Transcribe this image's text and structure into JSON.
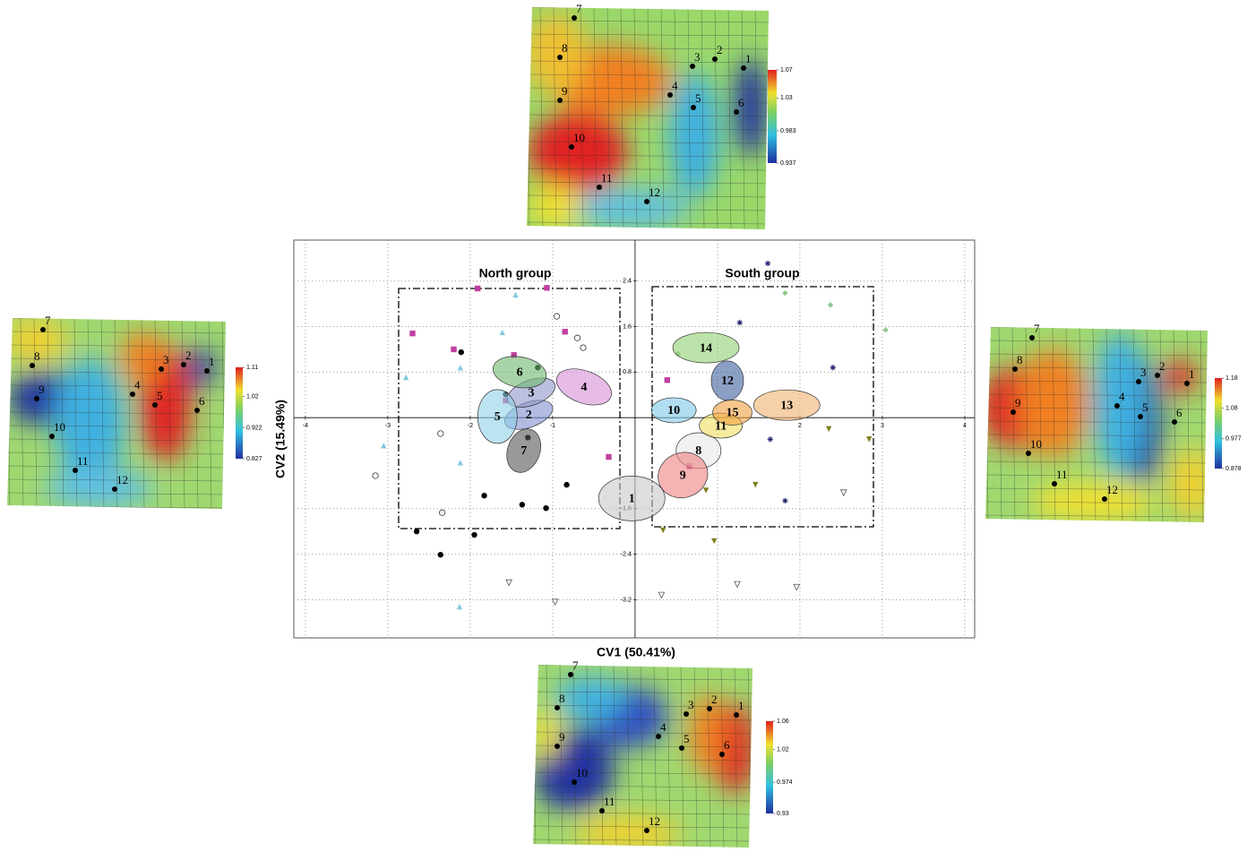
{
  "chart_data": [
    {
      "type": "scatter",
      "xlabel": "CV1 (50.41%)",
      "ylabel": "CV2 (15.49%)",
      "xlim": [
        -4.14,
        4.12
      ],
      "ylim": [
        -3.87,
        3.12
      ],
      "xticks": [
        -4,
        -3,
        -2,
        -1,
        1,
        2,
        3,
        4
      ],
      "yticks": [
        -3.2,
        -2.4,
        -1.6,
        0.8,
        1.6,
        2.4
      ],
      "grid": true,
      "annotations": [
        "North group",
        "South group"
      ],
      "groups": {
        "labels": [
          "1",
          "2",
          "3",
          "4",
          "5",
          "6",
          "7",
          "8",
          "9",
          "10",
          "11",
          "12",
          "13",
          "14",
          "15"
        ],
        "x": [
          -0.04,
          -1.29,
          -1.26,
          -0.62,
          -1.67,
          -1.4,
          -1.35,
          0.77,
          0.58,
          0.47,
          1.04,
          1.12,
          1.84,
          0.86,
          1.18
        ],
        "y": [
          -1.42,
          0.05,
          0.44,
          0.54,
          0.02,
          0.8,
          -0.58,
          -0.58,
          -1.01,
          0.13,
          -0.14,
          0.65,
          0.22,
          1.23,
          0.09
        ],
        "colors": [
          "#c8c8c8",
          "#7f8fd0",
          "#8f96c8",
          "#d68fd6",
          "#8fd0e8",
          "#6fb86f",
          "#555555",
          "#e8e8e8",
          "#f08080",
          "#7fc8e8",
          "#f0e060",
          "#4060a0",
          "#f0b070",
          "#90d070",
          "#f0a040"
        ]
      },
      "series": [
        {
          "marker": "circle",
          "color": "#000000",
          "x": [
            -2.11,
            -1.18,
            -1.57,
            -1.3,
            -1.83,
            -1.37,
            -1.08,
            -0.83,
            -2.65,
            -2.36,
            -1.95
          ],
          "values": [
            1.15,
            0.88,
            0.41,
            -0.35,
            -1.37,
            -1.53,
            -1.59,
            -1.18,
            -2.0,
            -2.41,
            -2.06
          ]
        },
        {
          "marker": "square",
          "color": "#c040a0",
          "x": [
            -1.91,
            -1.07,
            -2.7,
            -1.47,
            -0.85,
            -2.2,
            -1.57,
            -0.32,
            0.39,
            0.66
          ],
          "values": [
            2.27,
            2.28,
            1.48,
            1.1,
            1.51,
            1.2,
            0.3,
            -0.69,
            0.66,
            -0.85
          ]
        },
        {
          "marker": "triangle",
          "color": "#80c8e0",
          "x": [
            -1.45,
            -1.61,
            -2.12,
            -2.78,
            -3.05,
            -2.12,
            -2.13
          ],
          "values": [
            2.16,
            1.5,
            0.88,
            0.71,
            -0.49,
            -0.79,
            -3.32
          ]
        },
        {
          "marker": "open-circle",
          "color": "#333333",
          "x": [
            -2.36,
            -3.15,
            -2.34,
            -0.95,
            -0.7,
            -0.63
          ],
          "values": [
            -0.28,
            -1.02,
            -1.67,
            1.78,
            1.4,
            1.23
          ]
        },
        {
          "marker": "triangle-down",
          "color": "#808020",
          "x": [
            0.86,
            0.96,
            0.34,
            2.84,
            2.35,
            1.46
          ],
          "values": [
            -1.28,
            -2.17,
            -1.98,
            -0.38,
            -0.2,
            -1.18
          ]
        },
        {
          "marker": "star",
          "color": "#202070",
          "x": [
            1.61,
            1.27,
            2.4,
            1.64,
            1.82
          ],
          "values": [
            2.71,
            1.67,
            0.88,
            -0.38,
            -1.46
          ]
        },
        {
          "marker": "open-triangle-down",
          "color": "#555555",
          "x": [
            -1.53,
            -0.97,
            0.32,
            1.24,
            1.96,
            2.53
          ],
          "values": [
            -2.9,
            -3.24,
            -3.12,
            -2.93,
            -2.98,
            -1.32
          ]
        },
        {
          "marker": "diamond",
          "color": "#90c890",
          "x": [
            0.52,
            1.82,
            2.37,
            3.04
          ],
          "values": [
            1.12,
            2.19,
            1.98,
            1.54
          ]
        }
      ]
    },
    {
      "type": "deformation-grid",
      "position": "top",
      "landmarks": [
        "1",
        "2",
        "3",
        "4",
        "5",
        "6",
        "7",
        "8",
        "9",
        "10",
        "11",
        "12"
      ],
      "colorbar_ticks": [
        0.937,
        0.983,
        1.03,
        1.07
      ]
    },
    {
      "type": "deformation-grid",
      "position": "left",
      "landmarks": [
        "1",
        "2",
        "3",
        "4",
        "5",
        "6",
        "7",
        "8",
        "9",
        "10",
        "11",
        "12"
      ],
      "colorbar_ticks": [
        0.827,
        0.922,
        1.02,
        1.11
      ]
    },
    {
      "type": "deformation-grid",
      "position": "right",
      "landmarks": [
        "1",
        "2",
        "3",
        "4",
        "5",
        "6",
        "7",
        "8",
        "9",
        "10",
        "11",
        "12"
      ],
      "colorbar_ticks": [
        0.878,
        0.977,
        1.08,
        1.18
      ]
    },
    {
      "type": "deformation-grid",
      "position": "bottom",
      "landmarks": [
        "1",
        "2",
        "3",
        "4",
        "5",
        "6",
        "7",
        "8",
        "9",
        "10",
        "11",
        "12"
      ],
      "colorbar_ticks": [
        0.93,
        0.974,
        1.02,
        1.06
      ]
    }
  ]
}
